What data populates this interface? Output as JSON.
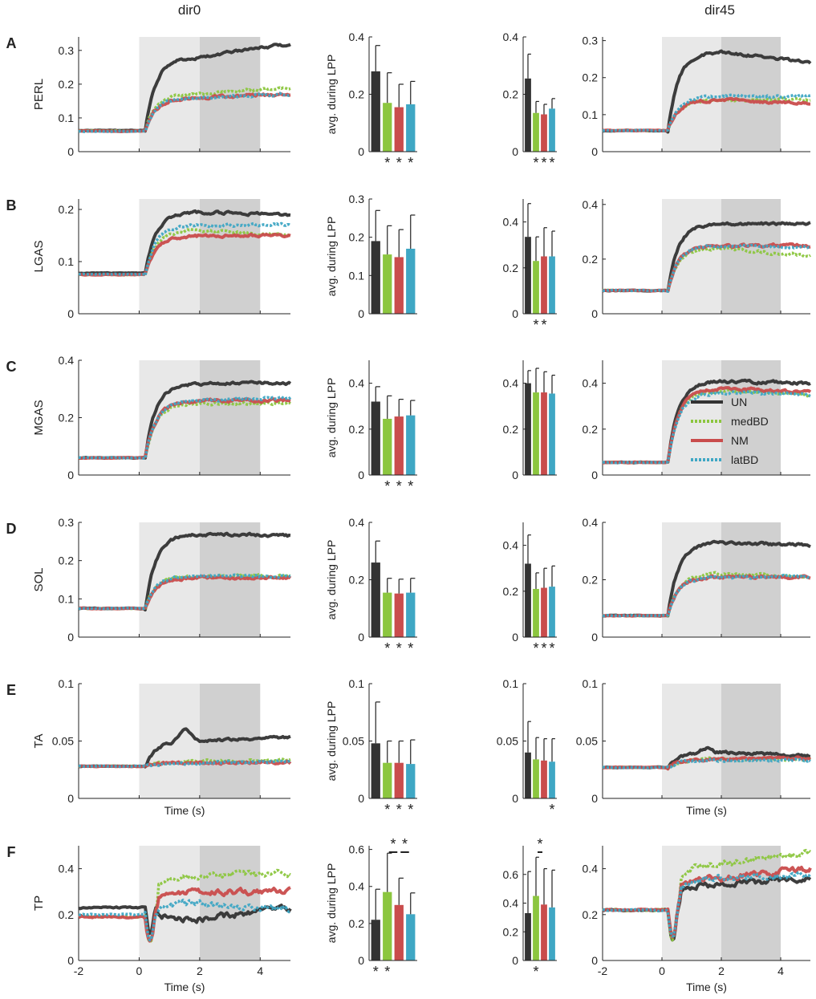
{
  "column_titles": [
    "dir0",
    "dir45"
  ],
  "xlabel": "Time (s)",
  "bar_ylabel": "avg. during LPP",
  "x_ticks": [
    "-2",
    "0",
    "2",
    "4"
  ],
  "legend": [
    {
      "label": "UN",
      "style": "solid",
      "color": "#333333"
    },
    {
      "label": "medBD",
      "style": "dotted",
      "color": "#8CC63F"
    },
    {
      "label": "NM",
      "style": "solid",
      "color": "#C94C4C"
    },
    {
      "label": "latBD",
      "style": "dotted",
      "color": "#3FA7C4"
    }
  ],
  "colors": {
    "UN": "#333333",
    "medBD": "#8CC63F",
    "NM": "#C94C4C",
    "latBD": "#3FA7C4",
    "shade_light": "#E8E8E8",
    "shade_dark": "#D0D0D0"
  },
  "chart_data": {
    "type": "line",
    "conditions": [
      "UN",
      "medBD",
      "NM",
      "latBD"
    ],
    "x_range": [
      -2,
      5
    ],
    "perturbation_window": [
      0,
      2
    ],
    "lpp_window": [
      2,
      4
    ],
    "rows": [
      {
        "letter": "A",
        "muscle": "PERL",
        "dir0": {
          "ylim": [
            0,
            0.34
          ],
          "yticks": [
            "0",
            "0.1",
            "0.2",
            "0.3"
          ],
          "tickvals": [
            0,
            0.1,
            0.2,
            0.3
          ],
          "baseline": [
            0.063,
            0.062,
            0.061,
            0.06
          ],
          "plateau": [
            0.28,
            0.17,
            0.16,
            0.16
          ],
          "final": [
            0.32,
            0.19,
            0.17,
            0.17
          ],
          "peak": 0
        },
        "bar0": {
          "ylim": [
            0,
            0.4
          ],
          "yticks": [
            "0",
            "0.2",
            "0.4"
          ],
          "tickvals": [
            0,
            0.2,
            0.4
          ],
          "values": [
            0.28,
            0.17,
            0.155,
            0.165
          ],
          "errors": [
            0.09,
            0.105,
            0.08,
            0.08
          ],
          "stars": [
            "",
            "*",
            "*",
            "*"
          ]
        },
        "bar45": {
          "ylim": [
            0,
            0.4
          ],
          "yticks": [
            "0",
            "0.2",
            "0.4"
          ],
          "tickvals": [
            0,
            0.2,
            0.4
          ],
          "values": [
            0.255,
            0.135,
            0.13,
            0.15
          ],
          "errors": [
            0.085,
            0.04,
            0.035,
            0.035
          ],
          "stars": [
            "",
            "*",
            "*",
            "*"
          ]
        },
        "dir45": {
          "ylim": [
            0,
            0.31
          ],
          "yticks": [
            "0",
            "0.1",
            "0.2",
            "0.3"
          ],
          "tickvals": [
            0,
            0.1,
            0.2,
            0.3
          ],
          "baseline": [
            0.057,
            0.057,
            0.057,
            0.057
          ],
          "plateau": [
            0.27,
            0.14,
            0.14,
            0.15
          ],
          "final": [
            0.24,
            0.14,
            0.13,
            0.15
          ],
          "peak": 0
        }
      },
      {
        "letter": "B",
        "muscle": "LGAS",
        "dir0": {
          "ylim": [
            0,
            0.22
          ],
          "yticks": [
            "0",
            "0.1",
            "0.2"
          ],
          "tickvals": [
            0,
            0.1,
            0.2
          ],
          "baseline": [
            0.078,
            0.075,
            0.075,
            0.076
          ],
          "plateau": [
            0.195,
            0.16,
            0.15,
            0.17
          ],
          "final": [
            0.19,
            0.15,
            0.15,
            0.17
          ],
          "peak": 0
        },
        "bar0": {
          "ylim": [
            0,
            0.3
          ],
          "yticks": [
            "0",
            "0.1",
            "0.2",
            "0.3"
          ],
          "tickvals": [
            0,
            0.1,
            0.2,
            0.3
          ],
          "values": [
            0.19,
            0.155,
            0.148,
            0.17
          ],
          "errors": [
            0.08,
            0.075,
            0.072,
            0.088
          ],
          "stars": [
            "",
            "",
            "",
            ""
          ]
        },
        "bar45": {
          "ylim": [
            0,
            0.5
          ],
          "yticks": [
            "0",
            "0.2",
            "0.4"
          ],
          "tickvals": [
            0,
            0.2,
            0.4
          ],
          "values": [
            0.335,
            0.23,
            0.25,
            0.25
          ],
          "errors": [
            0.145,
            0.105,
            0.125,
            0.11
          ],
          "stars": [
            "",
            "*",
            "*",
            ""
          ]
        },
        "dir45": {
          "ylim": [
            0,
            0.42
          ],
          "yticks": [
            "0",
            "0.2",
            "0.4"
          ],
          "tickvals": [
            0,
            0.2,
            0.4
          ],
          "baseline": [
            0.085,
            0.085,
            0.085,
            0.085
          ],
          "plateau": [
            0.33,
            0.24,
            0.25,
            0.25
          ],
          "final": [
            0.33,
            0.21,
            0.25,
            0.24
          ],
          "peak": 0
        }
      },
      {
        "letter": "C",
        "muscle": "MGAS",
        "dir0": {
          "ylim": [
            0,
            0.4
          ],
          "yticks": [
            "0",
            "0.2",
            "0.4"
          ],
          "tickvals": [
            0,
            0.2,
            0.4
          ],
          "baseline": [
            0.06,
            0.06,
            0.06,
            0.06
          ],
          "plateau": [
            0.32,
            0.25,
            0.26,
            0.26
          ],
          "final": [
            0.32,
            0.25,
            0.26,
            0.27
          ],
          "peak": 0
        },
        "bar0": {
          "ylim": [
            0,
            0.5
          ],
          "yticks": [
            "0",
            "0.2",
            "0.4"
          ],
          "tickvals": [
            0,
            0.2,
            0.4
          ],
          "values": [
            0.32,
            0.245,
            0.255,
            0.26
          ],
          "errors": [
            0.065,
            0.1,
            0.075,
            0.065
          ],
          "stars": [
            "",
            "*",
            "*",
            "*"
          ]
        },
        "bar45": {
          "ylim": [
            0,
            0.5
          ],
          "yticks": [
            "0",
            "0.2",
            "0.4"
          ],
          "tickvals": [
            0,
            0.2,
            0.4
          ],
          "values": [
            0.4,
            0.36,
            0.36,
            0.355
          ],
          "errors": [
            0.055,
            0.105,
            0.09,
            0.08
          ],
          "stars": [
            "",
            "",
            "",
            ""
          ]
        },
        "dir45": {
          "ylim": [
            0,
            0.5
          ],
          "yticks": [
            "0",
            "0.2",
            "0.4"
          ],
          "tickvals": [
            0,
            0.2,
            0.4
          ],
          "baseline": [
            0.055,
            0.055,
            0.055,
            0.055
          ],
          "plateau": [
            0.41,
            0.37,
            0.38,
            0.36
          ],
          "final": [
            0.4,
            0.35,
            0.36,
            0.35
          ],
          "peak": 0
        }
      },
      {
        "letter": "D",
        "muscle": "SOL",
        "dir0": {
          "ylim": [
            0,
            0.3
          ],
          "yticks": [
            "0",
            "0.1",
            "0.2",
            "0.3"
          ],
          "tickvals": [
            0,
            0.1,
            0.2,
            0.3
          ],
          "baseline": [
            0.075,
            0.075,
            0.075,
            0.075
          ],
          "plateau": [
            0.27,
            0.16,
            0.155,
            0.16
          ],
          "final": [
            0.265,
            0.16,
            0.155,
            0.16
          ],
          "peak": 0
        },
        "bar0": {
          "ylim": [
            0,
            0.4
          ],
          "yticks": [
            "0",
            "0.2",
            "0.4"
          ],
          "tickvals": [
            0,
            0.2,
            0.4
          ],
          "values": [
            0.26,
            0.155,
            0.152,
            0.155
          ],
          "errors": [
            0.075,
            0.05,
            0.05,
            0.05
          ],
          "stars": [
            "",
            "*",
            "*",
            "*"
          ]
        },
        "bar45": {
          "ylim": [
            0,
            0.5
          ],
          "yticks": [
            "0",
            "0.2",
            "0.4"
          ],
          "tickvals": [
            0,
            0.2,
            0.4
          ],
          "values": [
            0.32,
            0.21,
            0.215,
            0.22
          ],
          "errors": [
            0.125,
            0.07,
            0.085,
            0.09
          ],
          "stars": [
            "",
            "*",
            "*",
            "*"
          ]
        },
        "dir45": {
          "ylim": [
            0,
            0.4
          ],
          "yticks": [
            "0",
            "0.2",
            "0.4"
          ],
          "tickvals": [
            0,
            0.2,
            0.4
          ],
          "baseline": [
            0.075,
            0.075,
            0.075,
            0.075
          ],
          "plateau": [
            0.33,
            0.22,
            0.21,
            0.21
          ],
          "final": [
            0.32,
            0.21,
            0.21,
            0.21
          ],
          "peak": 0
        }
      },
      {
        "letter": "E",
        "muscle": "TA",
        "dir0": {
          "ylim": [
            0,
            0.1
          ],
          "yticks": [
            "0",
            "0.05",
            "0.1"
          ],
          "tickvals": [
            0,
            0.05,
            0.1
          ],
          "baseline": [
            0.028,
            0.028,
            0.028,
            0.028
          ],
          "plateau": [
            0.05,
            0.032,
            0.031,
            0.031
          ],
          "final": [
            0.053,
            0.033,
            0.031,
            0.032
          ],
          "peak": 0.012
        },
        "bar0": {
          "ylim": [
            0,
            0.1
          ],
          "yticks": [
            "0",
            "0.05",
            "0.1"
          ],
          "tickvals": [
            0,
            0.05,
            0.1
          ],
          "values": [
            0.048,
            0.031,
            0.031,
            0.03
          ],
          "errors": [
            0.036,
            0.019,
            0.019,
            0.021
          ],
          "stars": [
            "",
            "*",
            "*",
            "*"
          ]
        },
        "bar45": {
          "ylim": [
            0,
            0.1
          ],
          "yticks": [
            "0",
            "0.05",
            "0.1"
          ],
          "tickvals": [
            0,
            0.05,
            0.1
          ],
          "values": [
            0.04,
            0.034,
            0.033,
            0.032
          ],
          "errors": [
            0.027,
            0.019,
            0.019,
            0.02
          ],
          "stars": [
            "",
            "",
            "",
            "*"
          ]
        },
        "dir45": {
          "ylim": [
            0,
            0.1
          ],
          "yticks": [
            "0",
            "0.05",
            "0.1"
          ],
          "tickvals": [
            0,
            0.05,
            0.1
          ],
          "baseline": [
            0.027,
            0.027,
            0.027,
            0.027
          ],
          "plateau": [
            0.04,
            0.034,
            0.034,
            0.033
          ],
          "final": [
            0.037,
            0.034,
            0.035,
            0.033
          ],
          "peak": 0.004
        }
      },
      {
        "letter": "F",
        "muscle": "TP",
        "dir0": {
          "ylim": [
            0,
            0.5
          ],
          "yticks": [
            "0",
            "0.2",
            "0.4"
          ],
          "tickvals": [
            0,
            0.2,
            0.4
          ],
          "baseline": [
            0.23,
            0.19,
            0.19,
            0.2
          ],
          "plateau": [
            0.18,
            0.37,
            0.3,
            0.25
          ],
          "final": [
            0.23,
            0.38,
            0.3,
            0.22
          ],
          "peak": 0,
          "dip": 0.11
        },
        "bar0": {
          "ylim": [
            0,
            0.62
          ],
          "yticks": [
            "0",
            "0.2",
            "0.4",
            "0.6"
          ],
          "tickvals": [
            0,
            0.2,
            0.4,
            0.6
          ],
          "values": [
            0.22,
            0.37,
            0.3,
            0.25
          ],
          "errors": [
            0.165,
            0.21,
            0.145,
            0.115
          ],
          "stars": [
            "*",
            "*",
            "",
            ""
          ],
          "sig_bars": [
            {
              "from": 1,
              "to": 2
            },
            {
              "from": 2,
              "to": 3
            }
          ]
        },
        "bar45": {
          "ylim": [
            0,
            0.8
          ],
          "yticks": [
            "0",
            "0.2",
            "0.4",
            "0.6"
          ],
          "tickvals": [
            0,
            0.2,
            0.4,
            0.6
          ],
          "values": [
            0.33,
            0.45,
            0.39,
            0.37
          ],
          "errors": [
            0.29,
            0.27,
            0.25,
            0.26
          ],
          "stars": [
            "",
            "*",
            "",
            ""
          ],
          "sig_bars": [
            {
              "from": 1,
              "to": 2
            }
          ]
        },
        "dir45": {
          "ylim": [
            0,
            0.5
          ],
          "yticks": [
            "0",
            "0.2",
            "0.4"
          ],
          "tickvals": [
            0,
            0.2,
            0.4
          ],
          "baseline": [
            0.22,
            0.22,
            0.22,
            0.22
          ],
          "plateau": [
            0.33,
            0.42,
            0.36,
            0.36
          ],
          "final": [
            0.36,
            0.47,
            0.4,
            0.37
          ],
          "peak": 0,
          "dip": 0.12
        }
      }
    ]
  }
}
